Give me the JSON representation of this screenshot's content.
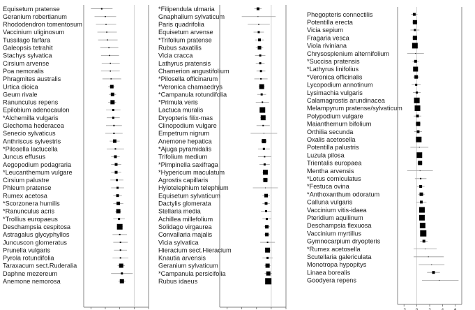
{
  "chart_data": [
    {
      "type": "forest",
      "xlim": [
        -7,
        2
      ],
      "xticks": [
        -6,
        -4,
        -2,
        0,
        2
      ],
      "grid": false,
      "zero_line": true,
      "rows": [
        {
          "label": "Equisetum pratense",
          "est": -4.5,
          "lo": -6.0,
          "hi": -3.0,
          "w": 2
        },
        {
          "label": "Geranium robertianum",
          "est": -4.0,
          "lo": -5.5,
          "hi": -2.5,
          "w": 1.5
        },
        {
          "label": "Rhododendron tomentosum",
          "est": -3.9,
          "lo": -5.3,
          "hi": -2.5,
          "w": 1.5
        },
        {
          "label": "Vaccinium uliginosum",
          "est": -3.8,
          "lo": -5.1,
          "hi": -2.4,
          "w": 1.5
        },
        {
          "label": "Tussilago farfara",
          "est": -3.7,
          "lo": -5.0,
          "hi": -2.3,
          "w": 1.5
        },
        {
          "label": "Galeopsis tetrahit",
          "est": -3.5,
          "lo": -4.7,
          "hi": -2.2,
          "w": 1.5
        },
        {
          "label": "Stachys sylvatica",
          "est": -3.4,
          "lo": -4.6,
          "hi": -2.1,
          "w": 1.5
        },
        {
          "label": "Cirsium arvense",
          "est": -3.3,
          "lo": -4.5,
          "hi": -2.0,
          "w": 1.5
        },
        {
          "label": "Poa nemoralis",
          "est": -3.3,
          "lo": -4.6,
          "hi": -2.0,
          "w": 1.5
        },
        {
          "label": "Phragmites australis",
          "est": -3.2,
          "lo": -4.4,
          "hi": -1.8,
          "w": 1.5
        },
        {
          "label": "Urtica dioica",
          "est": -3.1,
          "lo": -3.6,
          "hi": -2.7,
          "w": 5
        },
        {
          "label": "Geum rivale",
          "est": -3.0,
          "lo": -3.5,
          "hi": -2.5,
          "w": 5
        },
        {
          "label": "Ranunculus repens",
          "est": -3.0,
          "lo": -3.6,
          "hi": -2.5,
          "w": 6
        },
        {
          "label": "Epilobium adenocaulon",
          "est": -2.9,
          "lo": -3.9,
          "hi": -1.9,
          "w": 3
        },
        {
          "label": "*Alchemilla vulgaris",
          "est": -2.9,
          "lo": -3.8,
          "hi": -2.0,
          "w": 3
        },
        {
          "label": "Glechoma hederacea",
          "est": -2.8,
          "lo": -3.9,
          "hi": -1.7,
          "w": 2
        },
        {
          "label": "Senecio sylvaticus",
          "est": -2.8,
          "lo": -4.0,
          "hi": -1.6,
          "w": 2
        },
        {
          "label": "Anthriscus sylvestris",
          "est": -2.7,
          "lo": -3.4,
          "hi": -2.0,
          "w": 5
        },
        {
          "label": "*Pilosella lactucella",
          "est": -2.6,
          "lo": -3.8,
          "hi": -1.4,
          "w": 2
        },
        {
          "label": "Juncus effusus",
          "est": -2.6,
          "lo": -3.2,
          "hi": -2.0,
          "w": 4
        },
        {
          "label": "Aegopodium podagraria",
          "est": -2.5,
          "lo": -3.2,
          "hi": -1.8,
          "w": 4
        },
        {
          "label": "*Leucanthemum vulgare",
          "est": -2.5,
          "lo": -3.2,
          "hi": -1.8,
          "w": 4
        },
        {
          "label": "Cirsium palustre",
          "est": -2.4,
          "lo": -3.3,
          "hi": -1.5,
          "w": 3
        },
        {
          "label": "Phleum pratense",
          "est": -2.3,
          "lo": -3.2,
          "hi": -1.4,
          "w": 3
        },
        {
          "label": "Rumex acetosa",
          "est": -2.3,
          "lo": -2.9,
          "hi": -1.7,
          "w": 4
        },
        {
          "label": "*Scorzonera humilis",
          "est": -2.2,
          "lo": -2.9,
          "hi": -1.5,
          "w": 5
        },
        {
          "label": "*Ranunculus acris",
          "est": -2.2,
          "lo": -2.6,
          "hi": -1.8,
          "w": 6
        },
        {
          "label": "*Trollius europaeus",
          "est": -2.1,
          "lo": -2.9,
          "hi": -1.3,
          "w": 3
        },
        {
          "label": "Deschampsia cespitosa",
          "est": -2.0,
          "lo": -2.4,
          "hi": -1.6,
          "w": 8
        },
        {
          "label": "Astragalus glycyphyllos",
          "est": -2.0,
          "lo": -3.0,
          "hi": -1.0,
          "w": 2
        },
        {
          "label": "Juncuscon glomeratus",
          "est": -1.9,
          "lo": -2.9,
          "hi": -0.9,
          "w": 2
        },
        {
          "label": "Prunella vulgaris",
          "est": -1.9,
          "lo": -2.8,
          "hi": -1.0,
          "w": 2
        },
        {
          "label": "Pyrola rotundifolia",
          "est": -1.9,
          "lo": -3.0,
          "hi": -0.8,
          "w": 2
        },
        {
          "label": "Taraxacum sect.Ruderalia",
          "est": -1.8,
          "lo": -2.3,
          "hi": -1.3,
          "w": 6
        },
        {
          "label": "Daphne mezereum",
          "est": -1.7,
          "lo": -3.2,
          "hi": -0.2,
          "w": 3
        },
        {
          "label": "Anemone nemorosa",
          "est": -1.7,
          "lo": -2.2,
          "hi": -1.2,
          "w": 6
        }
      ]
    },
    {
      "type": "forest",
      "xlim": [
        -7,
        2
      ],
      "xticks": [
        -6,
        -4,
        -2,
        0,
        2
      ],
      "grid": false,
      "zero_line": true,
      "rows": [
        {
          "label": "*Filipendula ulmaria",
          "est": -1.8,
          "lo": -2.3,
          "hi": -1.3,
          "w": 4
        },
        {
          "label": "Gnaphalium sylvaticum",
          "est": -1.8,
          "lo": -4.0,
          "hi": 0.6,
          "w": 1
        },
        {
          "label": "Paris quadrifolia",
          "est": -1.7,
          "lo": -3.2,
          "hi": -0.2,
          "w": 1.5
        },
        {
          "label": "Equisetum arvense",
          "est": -1.7,
          "lo": -2.4,
          "hi": -1.0,
          "w": 3
        },
        {
          "label": "*Trifolium pratense",
          "est": -1.6,
          "lo": -2.2,
          "hi": -1.0,
          "w": 4
        },
        {
          "label": "Rubus saxatilis",
          "est": -1.6,
          "lo": -2.1,
          "hi": -1.1,
          "w": 5
        },
        {
          "label": "Vicia cracca",
          "est": -1.5,
          "lo": -2.2,
          "hi": -0.8,
          "w": 3
        },
        {
          "label": "Lathyrus pratensis",
          "est": -1.5,
          "lo": -2.1,
          "hi": -0.9,
          "w": 3
        },
        {
          "label": "Chamerion angustifolium",
          "est": -1.4,
          "lo": -2.0,
          "hi": -0.8,
          "w": 3
        },
        {
          "label": "*Pilosella officinarum",
          "est": -1.4,
          "lo": -2.3,
          "hi": -0.5,
          "w": 2
        },
        {
          "label": "*Veronica chamaedrys",
          "est": -1.3,
          "lo": -1.7,
          "hi": -0.9,
          "w": 7
        },
        {
          "label": "*Campanula rotundifolia",
          "est": -1.3,
          "lo": -1.9,
          "hi": -0.7,
          "w": 3
        },
        {
          "label": "*Primula veris",
          "est": -1.2,
          "lo": -2.1,
          "hi": -0.3,
          "w": 2
        },
        {
          "label": "Lactuca muralis",
          "est": -1.2,
          "lo": -1.6,
          "hi": -0.8,
          "w": 8
        },
        {
          "label": "Dryopteris filix-mas",
          "est": -1.1,
          "lo": -1.5,
          "hi": -0.7,
          "w": 7
        },
        {
          "label": "Clinopodium vulgare",
          "est": -1.1,
          "lo": -2.0,
          "hi": -0.2,
          "w": 2
        },
        {
          "label": "Empetrum nigrum",
          "est": -1.0,
          "lo": -2.8,
          "hi": 0.8,
          "w": 1
        },
        {
          "label": "Anemone hepatica",
          "est": -1.0,
          "lo": -1.4,
          "hi": -0.6,
          "w": 6
        },
        {
          "label": "*Ajuga pyramidalis",
          "est": -1.0,
          "lo": -1.8,
          "hi": -0.2,
          "w": 3
        },
        {
          "label": "Trifolium medium",
          "est": -0.9,
          "lo": -1.8,
          "hi": 0.0,
          "w": 2
        },
        {
          "label": "*Pimpinella saxifraga",
          "est": -0.9,
          "lo": -1.6,
          "hi": -0.2,
          "w": 3
        },
        {
          "label": "*Hypericum maculatum",
          "est": -0.8,
          "lo": -1.2,
          "hi": -0.4,
          "w": 7
        },
        {
          "label": "Agrostis capillaris",
          "est": -0.8,
          "lo": -1.2,
          "hi": -0.4,
          "w": 6
        },
        {
          "label": "Hylotelephium telephium",
          "est": -0.8,
          "lo": -2.5,
          "hi": 0.9,
          "w": 1
        },
        {
          "label": "Equisetum sylvaticum",
          "est": -0.7,
          "lo": -1.2,
          "hi": -0.2,
          "w": 5
        },
        {
          "label": "Dactylis glomerata",
          "est": -0.7,
          "lo": -1.2,
          "hi": -0.2,
          "w": 4
        },
        {
          "label": "Stellaria media",
          "est": -0.7,
          "lo": -1.4,
          "hi": 0.0,
          "w": 3
        },
        {
          "label": "Achillea millefolium",
          "est": -0.6,
          "lo": -1.2,
          "hi": 0.0,
          "w": 3
        },
        {
          "label": "Solidago virgaurea",
          "est": -0.6,
          "lo": -1.0,
          "hi": -0.2,
          "w": 5
        },
        {
          "label": "Convallaria majalis",
          "est": -0.6,
          "lo": -1.0,
          "hi": -0.2,
          "w": 5
        },
        {
          "label": "Vicia sylvatica",
          "est": -0.5,
          "lo": -1.5,
          "hi": 0.5,
          "w": 2
        },
        {
          "label": "Hieracium sect.Hieracium",
          "est": -0.5,
          "lo": -0.9,
          "hi": -0.1,
          "w": 7
        },
        {
          "label": "Knautia arvensis",
          "est": -0.5,
          "lo": -1.2,
          "hi": 0.2,
          "w": 3
        },
        {
          "label": "Geranium sylvaticum",
          "est": -0.5,
          "lo": -0.9,
          "hi": -0.1,
          "w": 6
        },
        {
          "label": "*Campanula persicifolia",
          "est": -0.4,
          "lo": -0.9,
          "hi": 0.1,
          "w": 6
        },
        {
          "label": "Rubus idaeus",
          "est": -0.4,
          "lo": -0.8,
          "hi": 0.0,
          "w": 9
        }
      ]
    },
    {
      "type": "forest",
      "xlim": [
        -3,
        7
      ],
      "xticks": [
        -2,
        0,
        2,
        4,
        6
      ],
      "grid": false,
      "zero_line": true,
      "rows": [
        {
          "label": "Phegopteris connectilis",
          "est": -0.4,
          "lo": -0.9,
          "hi": 0.1,
          "w": 4
        },
        {
          "label": "Potentilla erecta",
          "est": -0.3,
          "lo": -0.7,
          "hi": 0.1,
          "w": 6
        },
        {
          "label": "Vicia sepium",
          "est": -0.3,
          "lo": -1.0,
          "hi": 0.4,
          "w": 3
        },
        {
          "label": "Fragaria vesca",
          "est": -0.3,
          "lo": -0.7,
          "hi": 0.1,
          "w": 6
        },
        {
          "label": "Viola riviniana",
          "est": -0.3,
          "lo": -0.7,
          "hi": 0.1,
          "w": 8
        },
        {
          "label": "Chrysosplenium alternifolium",
          "est": -0.2,
          "lo": -1.5,
          "hi": 1.1,
          "w": 1
        },
        {
          "label": "*Succisa pratensis",
          "est": -0.2,
          "lo": -0.7,
          "hi": 0.3,
          "w": 4
        },
        {
          "label": "*Lathyrus linifolius",
          "est": -0.2,
          "lo": -0.6,
          "hi": 0.2,
          "w": 7
        },
        {
          "label": "*Veronica officinalis",
          "est": -0.1,
          "lo": -0.6,
          "hi": 0.4,
          "w": 5
        },
        {
          "label": "Lycopodium annotinum",
          "est": -0.1,
          "lo": -0.8,
          "hi": 0.6,
          "w": 3
        },
        {
          "label": "Lysimachia vulgaris",
          "est": 0.0,
          "lo": -0.6,
          "hi": 0.6,
          "w": 3
        },
        {
          "label": "Calamagrostis arundinacea",
          "est": 0.0,
          "lo": -0.4,
          "hi": 0.4,
          "w": 8
        },
        {
          "label": "Melampyrum pratense/sylvaticum",
          "est": 0.1,
          "lo": -0.3,
          "hi": 0.5,
          "w": 8
        },
        {
          "label": "Polypodium vulgare",
          "est": 0.1,
          "lo": -0.5,
          "hi": 0.7,
          "w": 4
        },
        {
          "label": "Maianthemum bifolium",
          "est": 0.2,
          "lo": -0.2,
          "hi": 0.6,
          "w": 6
        },
        {
          "label": "Orthilia secunda",
          "est": 0.2,
          "lo": -0.4,
          "hi": 0.8,
          "w": 4
        },
        {
          "label": "Oxalis acetosella",
          "est": 0.3,
          "lo": -0.1,
          "hi": 0.7,
          "w": 8
        },
        {
          "label": "Potentilla palustris",
          "est": 0.4,
          "lo": -1.0,
          "hi": 1.8,
          "w": 1
        },
        {
          "label": "Luzula pilosa",
          "est": 0.4,
          "lo": 0.0,
          "hi": 0.8,
          "w": 8
        },
        {
          "label": "Trientalis europaea",
          "est": 0.5,
          "lo": 0.1,
          "hi": 0.9,
          "w": 6
        },
        {
          "label": "Mentha arvensis",
          "est": 0.5,
          "lo": -1.5,
          "hi": 2.5,
          "w": 1
        },
        {
          "label": "*Lotus corniculatus",
          "est": 0.6,
          "lo": -0.3,
          "hi": 1.5,
          "w": 2
        },
        {
          "label": "*Festuca ovina",
          "est": 0.6,
          "lo": 0.0,
          "hi": 1.2,
          "w": 4
        },
        {
          "label": "*Anthoxanthum odoratum",
          "est": 0.7,
          "lo": 0.2,
          "hi": 1.2,
          "w": 5
        },
        {
          "label": "Calluna vulgaris",
          "est": 0.7,
          "lo": -0.1,
          "hi": 1.5,
          "w": 4
        },
        {
          "label": "Vaccinium vitis-idaea",
          "est": 0.8,
          "lo": 0.4,
          "hi": 1.2,
          "w": 8
        },
        {
          "label": "Pteridium aquilinum",
          "est": 0.8,
          "lo": 0.4,
          "hi": 1.2,
          "w": 8
        },
        {
          "label": "Deschampsia flexuosa",
          "est": 0.9,
          "lo": 0.5,
          "hi": 1.3,
          "w": 8
        },
        {
          "label": "Vaccinium myrtillus",
          "est": 1.0,
          "lo": 0.6,
          "hi": 1.4,
          "w": 9
        },
        {
          "label": "Gymnocarpium dryopteris",
          "est": 1.1,
          "lo": 0.5,
          "hi": 1.7,
          "w": 4
        },
        {
          "label": "*Rumex acetosella",
          "est": 1.3,
          "lo": -0.5,
          "hi": 3.1,
          "w": 1
        },
        {
          "label": "Scutellaria galericulata",
          "est": 1.8,
          "lo": -0.5,
          "hi": 4.2,
          "w": 1
        },
        {
          "label": "Monotropa hypopitys",
          "est": 2.3,
          "lo": 0.3,
          "hi": 4.3,
          "w": 1
        },
        {
          "label": "Linaea borealis",
          "est": 2.6,
          "lo": 1.6,
          "hi": 3.6,
          "w": 4
        },
        {
          "label": "Goodyera repens",
          "est": 3.5,
          "lo": 0.8,
          "hi": 6.5,
          "w": 1
        }
      ]
    }
  ],
  "colors": {
    "marker": "#000000",
    "ci_line": "#9a9a9a",
    "zero_line": "#c8c8c8",
    "label_text": "#1a1a1a",
    "axis": "#555555"
  }
}
